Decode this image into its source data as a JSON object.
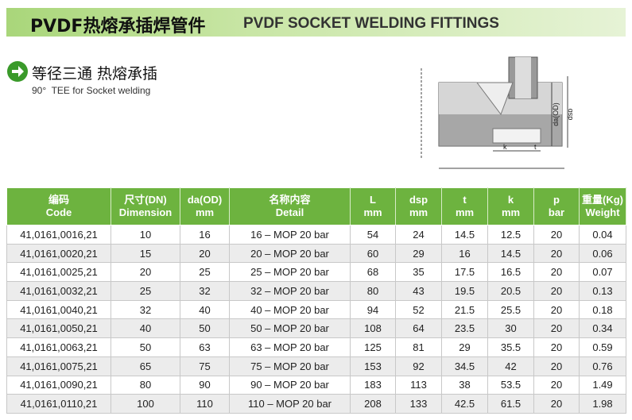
{
  "header": {
    "title_zh": "PVDF热熔承插焊管件",
    "title_en": "PVDF SOCKET WELDING FITTINGS"
  },
  "section": {
    "title_zh": "等径三通 热熔承插",
    "title_en": "90°  TEE for Socket welding"
  },
  "diagram": {
    "labels": [
      "da(OD)",
      "dsp",
      "k",
      "t"
    ]
  },
  "table": {
    "header": [
      [
        "编码",
        "Code"
      ],
      [
        "尺寸(DN)",
        "Dimension"
      ],
      [
        "da(OD)",
        "mm"
      ],
      [
        "名称内容",
        "Detail"
      ],
      [
        "L",
        "mm"
      ],
      [
        "dsp",
        "mm"
      ],
      [
        "t",
        "mm"
      ],
      [
        "k",
        "mm"
      ],
      [
        "p",
        "bar"
      ],
      [
        "重量(Kg)",
        "Weight"
      ]
    ],
    "rows": [
      [
        "41,0161,0016,21",
        "10",
        "16",
        "16 – MOP 20 bar",
        "54",
        "24",
        "14.5",
        "12.5",
        "20",
        "0.04"
      ],
      [
        "41,0161,0020,21",
        "15",
        "20",
        "20 – MOP 20 bar",
        "60",
        "29",
        "16",
        "14.5",
        "20",
        "0.06"
      ],
      [
        "41,0161,0025,21",
        "20",
        "25",
        "25 – MOP 20 bar",
        "68",
        "35",
        "17.5",
        "16.5",
        "20",
        "0.07"
      ],
      [
        "41,0161,0032,21",
        "25",
        "32",
        "32 – MOP 20 bar",
        "80",
        "43",
        "19.5",
        "20.5",
        "20",
        "0.13"
      ],
      [
        "41,0161,0040,21",
        "32",
        "40",
        "40 – MOP 20 bar",
        "94",
        "52",
        "21.5",
        "25.5",
        "20",
        "0.18"
      ],
      [
        "41,0161,0050,21",
        "40",
        "50",
        "50 – MOP 20 bar",
        "108",
        "64",
        "23.5",
        "30",
        "20",
        "0.34"
      ],
      [
        "41,0161,0063,21",
        "50",
        "63",
        "63 – MOP 20 bar",
        "125",
        "81",
        "29",
        "35.5",
        "20",
        "0.59"
      ],
      [
        "41,0161,0075,21",
        "65",
        "75",
        "75 – MOP 20 bar",
        "153",
        "92",
        "34.5",
        "42",
        "20",
        "0.76"
      ],
      [
        "41,0161,0090,21",
        "80",
        "90",
        "90 – MOP 20 bar",
        "183",
        "113",
        "38",
        "53.5",
        "20",
        "1.49"
      ],
      [
        "41,0161,0110,21",
        "100",
        "110",
        "110 – MOP 20 bar",
        "208",
        "133",
        "42.5",
        "61.5",
        "20",
        "1.98"
      ]
    ]
  }
}
